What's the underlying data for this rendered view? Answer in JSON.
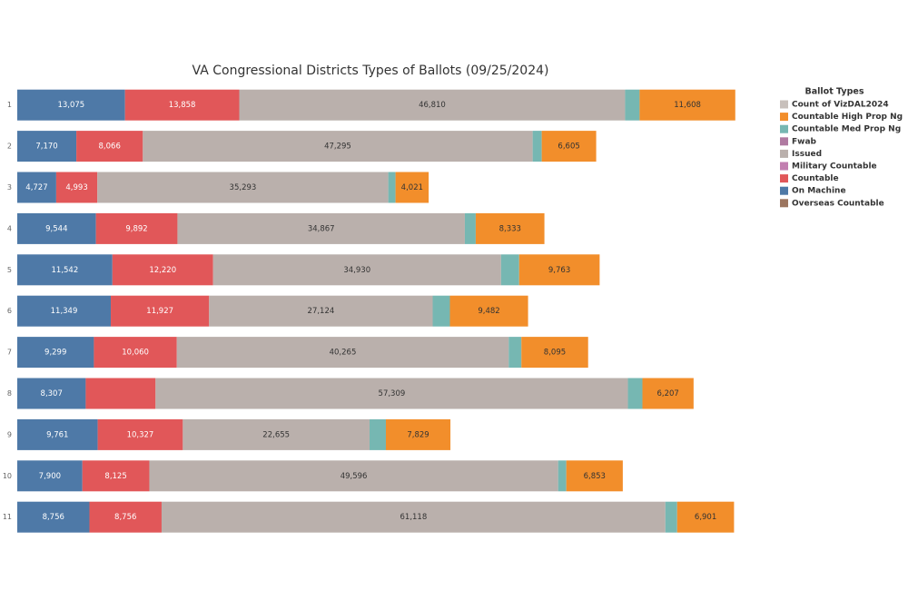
{
  "chart_data": {
    "type": "stacked-bar-horizontal",
    "title": "VA Congressional Districts  Types of Ballots (09/25/2024)",
    "legend_title": "Ballot Types",
    "categories": [
      "1",
      "2",
      "3",
      "4",
      "5",
      "6",
      "7",
      "8",
      "9",
      "10",
      "11"
    ],
    "xlim": [
      0,
      90000
    ],
    "series": [
      {
        "name": "Count of VizDAL2024",
        "color": "#c8c0bb",
        "values": [
          null,
          null,
          null,
          null,
          null,
          null,
          null,
          null,
          null,
          null,
          null
        ]
      },
      {
        "name": "Countable High Prop Ng",
        "color": "#f28e2b",
        "values": [
          11608,
          6605,
          4021,
          8333,
          9763,
          9482,
          8095,
          6207,
          7829,
          6853,
          6901
        ],
        "value_labels": [
          "11,608",
          "6,605",
          "4,021",
          "8,333",
          "9,763",
          "9,482",
          "8,095",
          "6,207",
          "7,829",
          "6,853",
          "6,901"
        ]
      },
      {
        "name": "Countable Med Prop Ng",
        "color": "#76b7b2",
        "values": [
          1760,
          1100,
          880,
          1320,
          2200,
          2090,
          1540,
          1760,
          1980,
          990,
          1430
        ]
      },
      {
        "name": "Fwab",
        "color": "#b07aa1",
        "values": [
          null,
          null,
          null,
          null,
          null,
          null,
          null,
          null,
          null,
          null,
          null
        ]
      },
      {
        "name": "Issued",
        "color": "#bab0ac",
        "values": [
          46810,
          47295,
          35293,
          34867,
          34930,
          27124,
          40265,
          57309,
          22655,
          49596,
          61118
        ],
        "value_labels": [
          "46,810",
          "47,295",
          "35,293",
          "34,867",
          "34,930",
          "27,124",
          "40,265",
          "57,309",
          "22,655",
          "49,596",
          "61,118"
        ]
      },
      {
        "name": "Military Countable",
        "color": "#c27fb0",
        "values": [
          null,
          null,
          null,
          null,
          null,
          null,
          null,
          null,
          null,
          null,
          null
        ]
      },
      {
        "name": "Countable",
        "color": "#e15759",
        "values": [
          13858,
          8066,
          4993,
          9892,
          12220,
          11927,
          10060,
          8470,
          10327,
          8125,
          8756
        ],
        "value_labels": [
          "13,858",
          "8,066",
          "4,993",
          "9,892",
          "12,220",
          "11,927",
          "10,060",
          null,
          "10,327",
          "8,125",
          "8,756"
        ]
      },
      {
        "name": "On Machine",
        "color": "#4e79a7",
        "values": [
          13075,
          7170,
          4727,
          9544,
          11542,
          11349,
          9299,
          8307,
          9761,
          7900,
          8756
        ],
        "value_labels": [
          "13,075",
          "7,170",
          "4,727",
          "9,544",
          "11,542",
          "11,349",
          "9,299",
          "8,307",
          "9,761",
          "7,900",
          "8,756"
        ]
      },
      {
        "name": "Overseas Countable",
        "color": "#9c755f",
        "values": [
          null,
          null,
          null,
          null,
          null,
          null,
          null,
          null,
          null,
          null,
          null
        ]
      }
    ]
  }
}
